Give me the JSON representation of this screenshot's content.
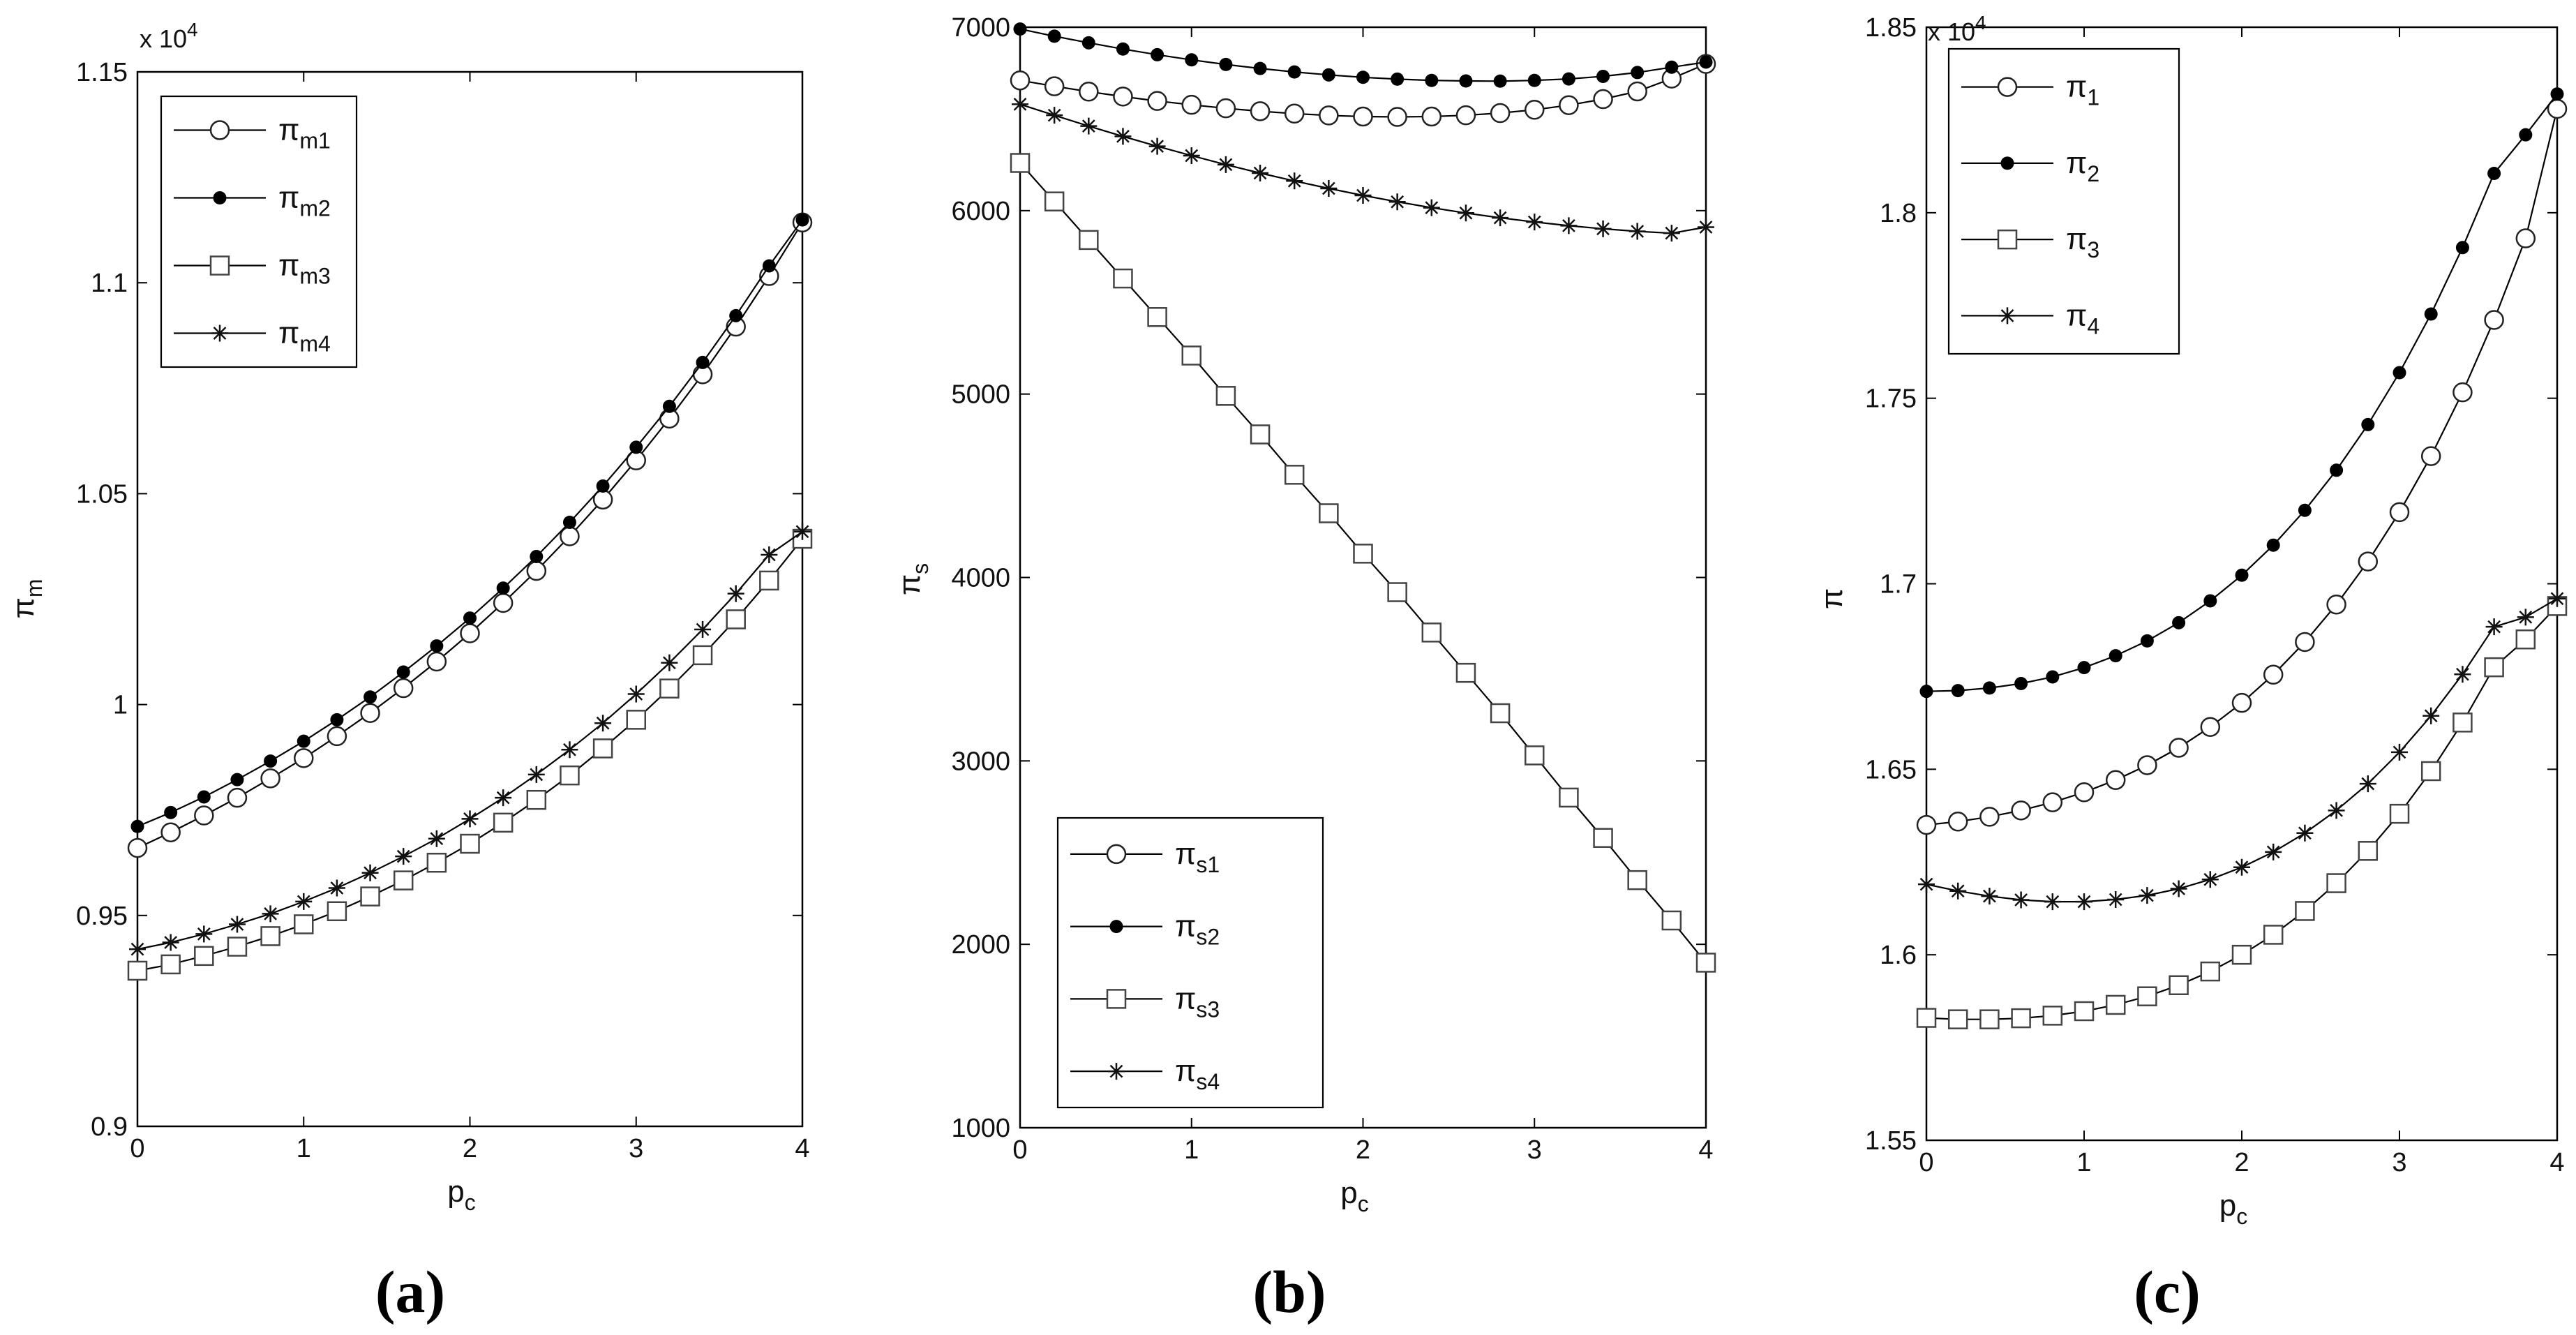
{
  "chart_data": [
    {
      "type": "line",
      "panel_label": "(a)",
      "xlabel": "p",
      "xlabel_sub": "c",
      "ylabel": "π",
      "ylabel_sub": "m",
      "xlim": [
        0,
        4
      ],
      "ylim": [
        0.9,
        1.15
      ],
      "xticks": [
        0,
        1,
        2,
        3,
        4
      ],
      "yticks": [
        0.9,
        0.95,
        1,
        1.05,
        1.1,
        1.15
      ],
      "ytick_labels": [
        "0.9",
        "0.95",
        "1",
        "1.05",
        "1.1",
        "1.15"
      ],
      "multiplier": {
        "base": "x 10",
        "exp": "4"
      },
      "legend_position": "top-left",
      "x": [
        0,
        0.2,
        0.4,
        0.6,
        0.8,
        1.0,
        1.2,
        1.4,
        1.6,
        1.8,
        2.0,
        2.2,
        2.4,
        2.6,
        2.8,
        3.0,
        3.2,
        3.4,
        3.6,
        3.8,
        4.0
      ],
      "series": [
        {
          "name": "π",
          "sub": "m1",
          "marker": "circle",
          "values": [
            0.966,
            0.9697,
            0.9737,
            0.9779,
            0.9825,
            0.9873,
            0.9925,
            0.998,
            1.0039,
            1.0102,
            1.0169,
            1.0241,
            1.0317,
            1.0399,
            1.0486,
            1.0579,
            1.0678,
            1.0783,
            1.0896,
            1.1016,
            1.1143
          ]
        },
        {
          "name": "π",
          "sub": "m2",
          "marker": "dot",
          "values": [
            0.9711,
            0.9744,
            0.9781,
            0.9822,
            0.9866,
            0.9913,
            0.9964,
            1.0018,
            1.0077,
            1.0139,
            1.0205,
            1.0276,
            1.0351,
            1.0432,
            1.0518,
            1.061,
            1.0707,
            1.0811,
            1.0922,
            1.104,
            1.1149
          ]
        },
        {
          "name": "π",
          "sub": "m3",
          "marker": "square",
          "values": [
            0.9369,
            0.9384,
            0.9404,
            0.9426,
            0.9451,
            0.9479,
            0.951,
            0.9545,
            0.9583,
            0.9625,
            0.967,
            0.972,
            0.9774,
            0.9832,
            0.9896,
            0.9964,
            1.0038,
            1.0117,
            1.0202,
            1.0294,
            1.0393
          ]
        },
        {
          "name": "π",
          "sub": "m4",
          "marker": "star",
          "values": [
            0.942,
            0.9436,
            0.9456,
            0.9479,
            0.9504,
            0.9533,
            0.9565,
            0.9601,
            0.964,
            0.9682,
            0.9729,
            0.9779,
            0.9834,
            0.9893,
            0.9956,
            1.0025,
            1.0099,
            1.0178,
            1.0263,
            1.0355,
            1.041
          ]
        }
      ]
    },
    {
      "type": "line",
      "panel_label": "(b)",
      "xlabel": "p",
      "xlabel_sub": "c",
      "ylabel": "π",
      "ylabel_sub": "s",
      "xlim": [
        0,
        4
      ],
      "ylim": [
        1000,
        7000
      ],
      "xticks": [
        0,
        1,
        2,
        3,
        4
      ],
      "yticks": [
        1000,
        2000,
        3000,
        4000,
        5000,
        6000,
        7000
      ],
      "ytick_labels": [
        "1000",
        "2000",
        "3000",
        "4000",
        "5000",
        "6000",
        "7000"
      ],
      "legend_position": "bottom-left",
      "x": [
        0,
        0.2,
        0.4,
        0.6,
        0.8,
        1.0,
        1.2,
        1.4,
        1.6,
        1.8,
        2.0,
        2.2,
        2.4,
        2.6,
        2.8,
        3.0,
        3.2,
        3.4,
        3.6,
        3.8,
        4.0
      ],
      "series": [
        {
          "name": "π",
          "sub": "s1",
          "marker": "circle",
          "values": [
            6710,
            6678,
            6649,
            6622,
            6598,
            6577,
            6558,
            6542,
            6529,
            6519,
            6513,
            6511,
            6513,
            6520,
            6532,
            6550,
            6575,
            6608,
            6650,
            6720,
            6800
          ]
        },
        {
          "name": "π",
          "sub": "s2",
          "marker": "dot",
          "values": [
            6990,
            6951,
            6915,
            6881,
            6850,
            6822,
            6797,
            6775,
            6756,
            6740,
            6727,
            6717,
            6710,
            6707,
            6706,
            6710,
            6718,
            6732,
            6753,
            6782,
            6810
          ]
        },
        {
          "name": "π",
          "sub": "s3",
          "marker": "square",
          "values": [
            6260,
            6050,
            5840,
            5630,
            5420,
            5210,
            4990,
            4780,
            4560,
            4350,
            4130,
            3920,
            3700,
            3480,
            3260,
            3030,
            2800,
            2580,
            2350,
            2130,
            1900
          ]
        },
        {
          "name": "π",
          "sub": "s4",
          "marker": "star",
          "values": [
            6580,
            6520,
            6461,
            6405,
            6351,
            6300,
            6251,
            6205,
            6162,
            6121,
            6083,
            6048,
            6016,
            5987,
            5961,
            5938,
            5918,
            5901,
            5887,
            5877,
            5910
          ]
        }
      ]
    },
    {
      "type": "line",
      "panel_label": "(c)",
      "xlabel": "p",
      "xlabel_sub": "c",
      "ylabel": "π",
      "ylabel_sub": "",
      "xlim": [
        0,
        4
      ],
      "ylim": [
        1.55,
        1.85
      ],
      "xticks": [
        0,
        1,
        2,
        3,
        4
      ],
      "yticks": [
        1.55,
        1.6,
        1.65,
        1.7,
        1.75,
        1.8,
        1.85
      ],
      "ytick_labels": [
        "1.55",
        "1.6",
        "1.65",
        "1.7",
        "1.75",
        "1.8",
        "1.85"
      ],
      "multiplier": {
        "base": "x 10",
        "exp": "4"
      },
      "legend_position": "top-left",
      "x": [
        0,
        0.2,
        0.4,
        0.6,
        0.8,
        1.0,
        1.2,
        1.4,
        1.6,
        1.8,
        2.0,
        2.2,
        2.4,
        2.6,
        2.8,
        3.0,
        3.2,
        3.4,
        3.6,
        3.8,
        4.0
      ],
      "series": [
        {
          "name": "π",
          "sub": "1",
          "marker": "circle",
          "values": [
            1.635,
            1.6359,
            1.6372,
            1.6389,
            1.6411,
            1.6438,
            1.6471,
            1.6511,
            1.6558,
            1.6614,
            1.6679,
            1.6755,
            1.6843,
            1.6944,
            1.706,
            1.7193,
            1.7344,
            1.7516,
            1.7711,
            1.7931,
            1.828
          ]
        },
        {
          "name": "π",
          "sub": "2",
          "marker": "dot",
          "values": [
            1.671,
            1.6712,
            1.6719,
            1.6731,
            1.6749,
            1.6774,
            1.6806,
            1.6846,
            1.6895,
            1.6954,
            1.7023,
            1.7104,
            1.7198,
            1.7306,
            1.7429,
            1.7569,
            1.7727,
            1.7906,
            1.8106,
            1.821,
            1.832
          ]
        },
        {
          "name": "π",
          "sub": "3",
          "marker": "square",
          "values": [
            1.583,
            1.5826,
            1.5826,
            1.5829,
            1.5836,
            1.5848,
            1.5865,
            1.5888,
            1.5918,
            1.5955,
            1.6,
            1.6054,
            1.6118,
            1.6193,
            1.628,
            1.638,
            1.6495,
            1.6626,
            1.6775,
            1.685,
            1.694
          ]
        },
        {
          "name": "π",
          "sub": "4",
          "marker": "star",
          "values": [
            1.619,
            1.6172,
            1.6158,
            1.6148,
            1.6143,
            1.6143,
            1.6149,
            1.616,
            1.6178,
            1.6203,
            1.6236,
            1.6277,
            1.6328,
            1.6389,
            1.6461,
            1.6546,
            1.6644,
            1.6756,
            1.6884,
            1.691,
            1.696
          ]
        }
      ]
    }
  ]
}
